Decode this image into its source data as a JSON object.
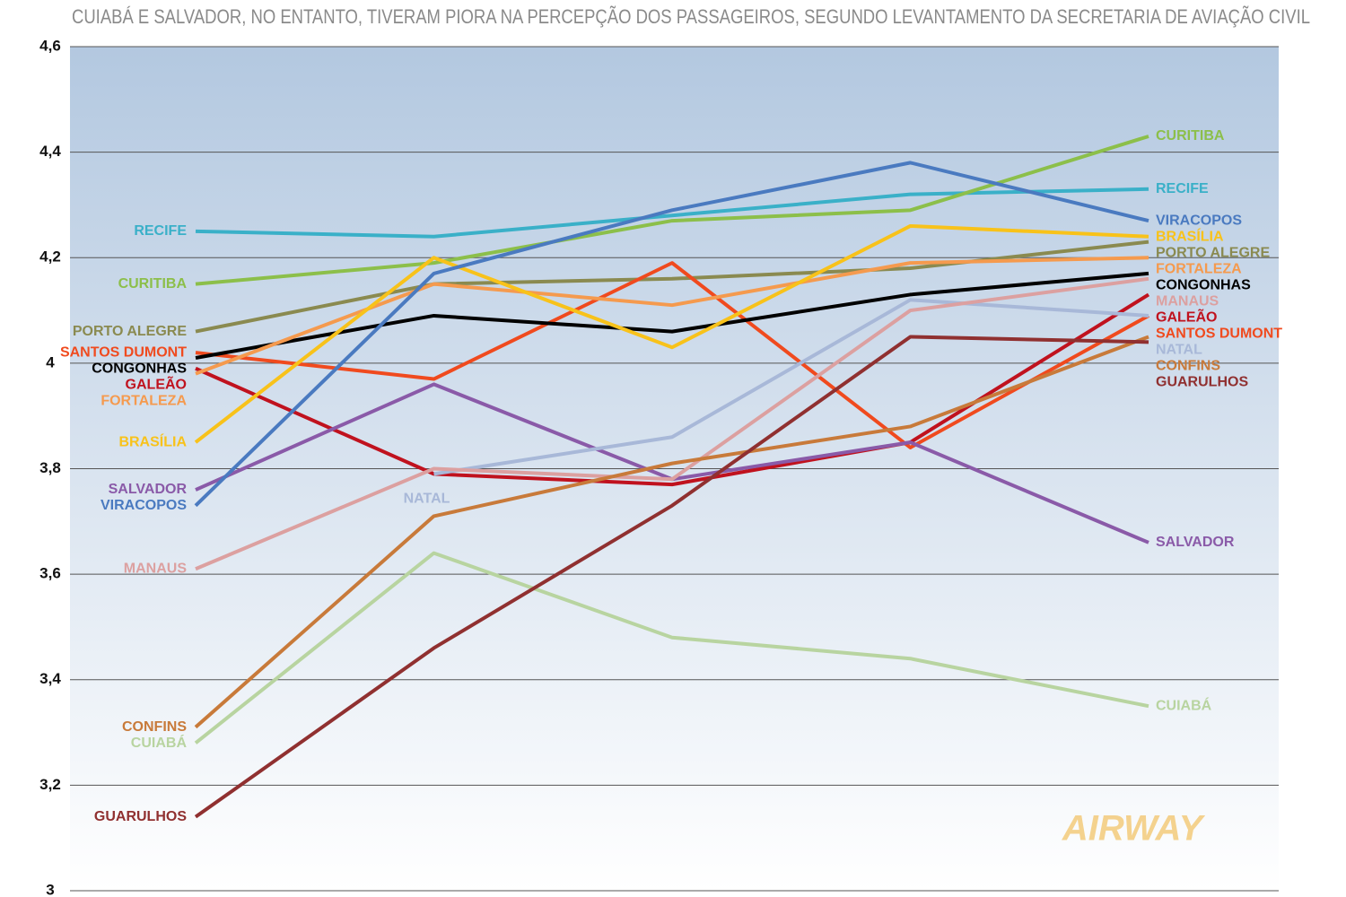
{
  "chart_data": {
    "type": "line",
    "title": "CUIABÁ E SALVADOR, NO ENTANTO, TIVERAM PIORA NA PERCEPÇÃO DOS PASSAGEIROS, SEGUNDO LEVANTAMENTO DA SECRETARIA DE AVIAÇÃO CIVIL",
    "watermark": "AIRWAY",
    "categories": [
      null,
      null,
      null,
      null,
      null
    ],
    "ylim": [
      3,
      4.6
    ],
    "yticks": [
      3,
      {
        "value": 3.2,
        "label": "3,2"
      },
      {
        "value": 3.4,
        "label": "3,4"
      },
      {
        "value": 3.6,
        "label": "3,6"
      },
      {
        "value": 3.8,
        "label": "3,8"
      },
      4,
      {
        "value": 4.2,
        "label": "4,2"
      },
      {
        "value": 4.4,
        "label": "4,4"
      },
      {
        "value": 4.6,
        "label": "4,6"
      }
    ],
    "grid": true,
    "series": [
      {
        "name": "RECIFE",
        "color": "#3ab0c8",
        "values": [
          4.25,
          4.24,
          4.28,
          4.32,
          4.33
        ]
      },
      {
        "name": "CURITIBA",
        "color": "#8cbf4a",
        "values": [
          4.15,
          4.19,
          4.27,
          4.29,
          4.43
        ]
      },
      {
        "name": "PORTO ALEGRE",
        "color": "#8a8a50",
        "values": [
          4.06,
          4.15,
          4.16,
          4.18,
          4.23
        ]
      },
      {
        "name": "SANTOS DUMONT",
        "color": "#f04a1e",
        "values": [
          4.02,
          3.97,
          4.19,
          3.84,
          4.09
        ]
      },
      {
        "name": "CONGONHAS",
        "color": "#000000",
        "values": [
          4.01,
          4.09,
          4.06,
          4.13,
          4.17
        ]
      },
      {
        "name": "GALEÃO",
        "color": "#c0121e",
        "values": [
          3.99,
          3.79,
          3.77,
          3.85,
          4.13
        ]
      },
      {
        "name": "FORTALEZA",
        "color": "#f59a4e",
        "values": [
          3.98,
          4.15,
          4.11,
          4.19,
          4.2
        ]
      },
      {
        "name": "BRASÍLIA",
        "color": "#f8c21a",
        "values": [
          3.85,
          4.2,
          4.03,
          4.26,
          4.24
        ]
      },
      {
        "name": "SALVADOR",
        "color": "#8a5aa8",
        "values": [
          3.76,
          3.96,
          3.78,
          3.85,
          3.66
        ]
      },
      {
        "name": "VIRACOPOS",
        "color": "#4a7ac0",
        "values": [
          3.73,
          4.17,
          4.29,
          4.38,
          4.27
        ]
      },
      {
        "name": "NATAL",
        "color": "#a8b8d8",
        "values": [
          null,
          3.79,
          3.86,
          4.12,
          4.09
        ]
      },
      {
        "name": "MANAUS",
        "color": "#dca0a0",
        "values": [
          3.61,
          3.8,
          3.78,
          4.1,
          4.16
        ]
      },
      {
        "name": "CONFINS",
        "color": "#c87a3a",
        "values": [
          3.31,
          3.71,
          3.81,
          3.88,
          4.05
        ]
      },
      {
        "name": "CUIABÁ",
        "color": "#b8d4a0",
        "values": [
          3.28,
          3.64,
          3.48,
          3.44,
          3.35
        ]
      },
      {
        "name": "GUARULHOS",
        "color": "#903030",
        "values": [
          3.14,
          3.46,
          3.73,
          4.05,
          4.04
        ]
      }
    ]
  }
}
